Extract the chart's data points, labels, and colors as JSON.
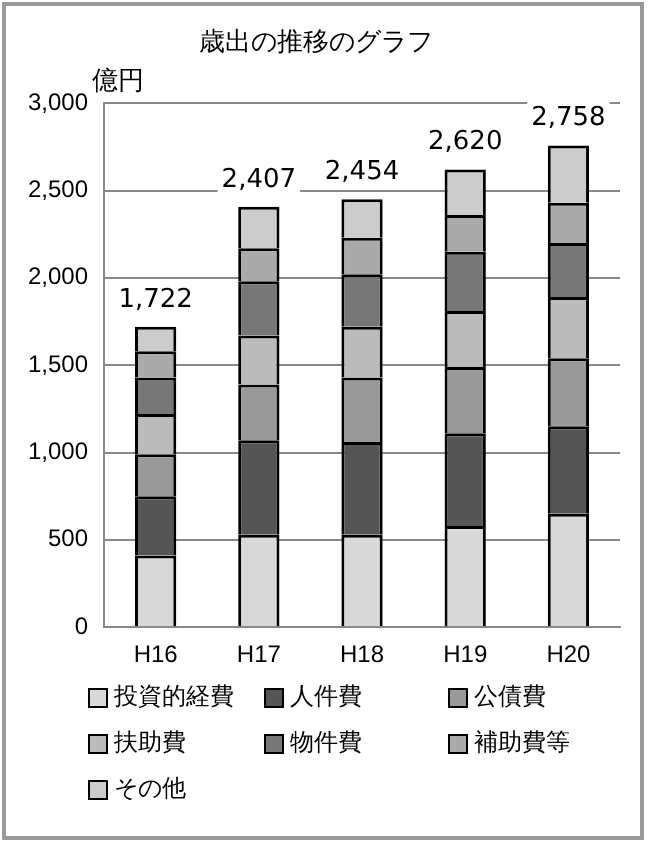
{
  "chart_data": {
    "type": "bar",
    "title": "歳出の推移のグラフ",
    "ylabel": "億円",
    "categories": [
      "H16",
      "H17",
      "H18",
      "H19",
      "H20"
    ],
    "stacked": true,
    "series": [
      {
        "name": "投資的経費",
        "color": "#d8d8d8",
        "values": [
          410,
          530,
          530,
          580,
          650
        ]
      },
      {
        "name": "人件費",
        "color": "#555555",
        "values": [
          340,
          540,
          530,
          530,
          500
        ]
      },
      {
        "name": "公債費",
        "color": "#999999",
        "values": [
          240,
          320,
          370,
          380,
          390
        ]
      },
      {
        "name": "扶助費",
        "color": "#bbbbbb",
        "values": [
          230,
          280,
          290,
          320,
          350
        ]
      },
      {
        "name": "物件費",
        "color": "#777777",
        "values": [
          210,
          310,
          300,
          340,
          310
        ]
      },
      {
        "name": "補助費等",
        "color": "#aaaaaa",
        "values": [
          150,
          190,
          210,
          210,
          230
        ]
      },
      {
        "name": "その他",
        "color": "#cccccc",
        "values": [
          140,
          237,
          220,
          260,
          328
        ]
      }
    ],
    "totals": [
      "1,722",
      "2,407",
      "2,454",
      "2,620",
      "2,758"
    ],
    "ylim": [
      0,
      3000
    ],
    "yticks": [
      0,
      {
        "value": 500,
        "label": "500"
      },
      {
        "value": 1000,
        "label": "1,000"
      },
      {
        "value": 1500,
        "label": "1,500"
      },
      {
        "value": 2000,
        "label": "2,000"
      },
      {
        "value": 2500,
        "label": "2,500"
      },
      {
        "value": 3000,
        "label": "3,000"
      }
    ],
    "grid": "y",
    "legend": "bottom"
  }
}
